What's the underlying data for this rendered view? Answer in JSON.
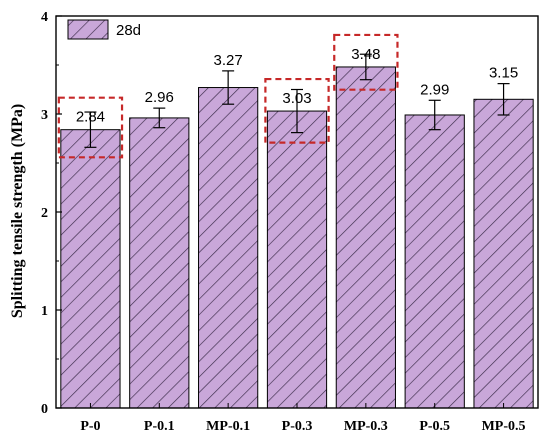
{
  "chart_data": {
    "type": "bar",
    "categories": [
      "P-0",
      "P-0.1",
      "MP-0.1",
      "P-0.3",
      "MP-0.3",
      "P-0.5",
      "MP-0.5"
    ],
    "series": [
      {
        "name": "28d",
        "values": [
          2.84,
          2.96,
          3.27,
          3.03,
          3.48,
          2.99,
          3.15
        ],
        "errors": [
          0.18,
          0.1,
          0.17,
          0.22,
          0.13,
          0.15,
          0.16
        ]
      }
    ],
    "value_labels": [
      "2.84",
      "2.96",
      "3.27",
      "3.03",
      "3.48",
      "2.99",
      "3.15"
    ],
    "ylabel": "Splitting tensile strength (MPa)",
    "ylim": [
      0,
      4
    ],
    "yticks": [
      0,
      1,
      2,
      3,
      4
    ],
    "highlighted_categories": [
      "P-0",
      "P-0.3",
      "MP-0.3"
    ],
    "legend_position": "top-left",
    "grid": false,
    "colors": {
      "bar_fill": "#c9a7d9",
      "hatch": "#3a2a48",
      "highlight_box": "#c62828"
    }
  }
}
